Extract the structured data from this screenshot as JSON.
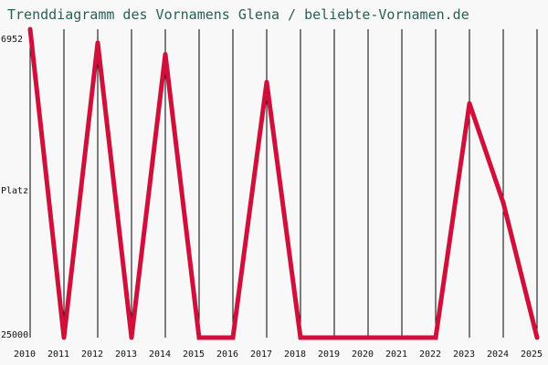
{
  "chart_data": {
    "type": "line",
    "title": "Trenddiagramm des Vornamens Glena / beliebte-Vornamen.de",
    "ylabel": "Platz",
    "y_axis_reversed": true,
    "ylim": [
      25000,
      6952
    ],
    "y_tick_labels": [
      "6952",
      "25000"
    ],
    "categories": [
      "2010",
      "2011",
      "2012",
      "2013",
      "2014",
      "2015",
      "2016",
      "2017",
      "2018",
      "2019",
      "2020",
      "2021",
      "2022",
      "2023",
      "2024",
      "2025"
    ],
    "series": [
      {
        "color": "#d0103a",
        "values": [
          6952,
          25000,
          7750,
          25000,
          8420,
          25000,
          25000,
          10050,
          25000,
          25000,
          25000,
          25000,
          25000,
          11300,
          17100,
          25000
        ]
      }
    ],
    "grid": {
      "vertical": true,
      "horizontal": false
    },
    "legend": "none"
  }
}
